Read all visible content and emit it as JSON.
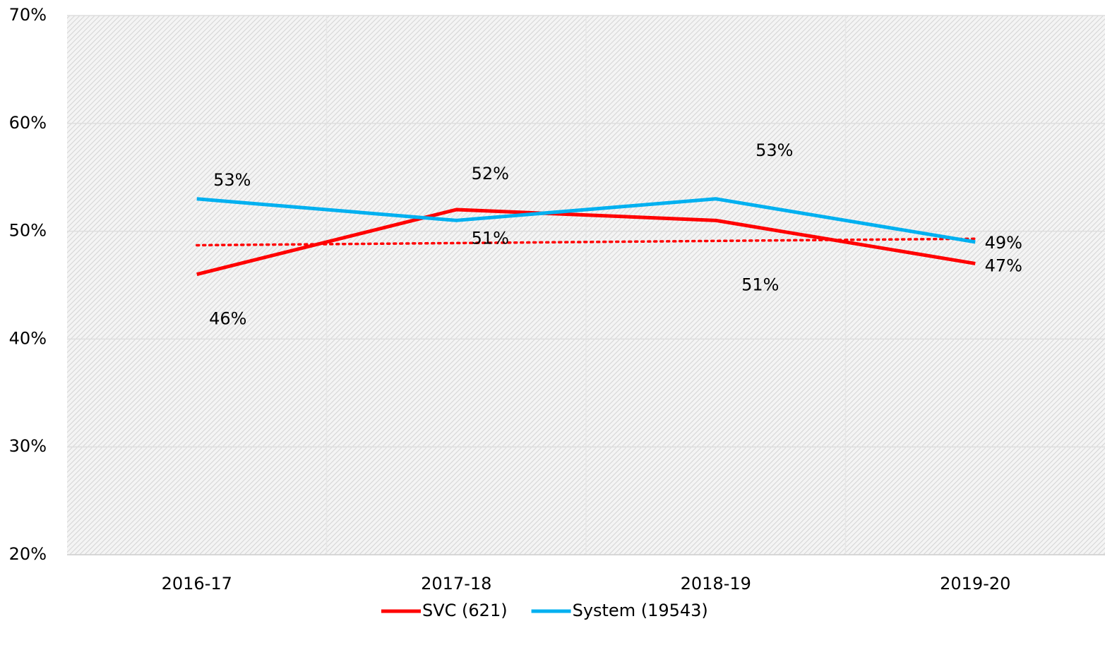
{
  "chart_data": {
    "type": "line",
    "categories": [
      "2016-17",
      "2017-18",
      "2018-19",
      "2019-20"
    ],
    "series": [
      {
        "name": "SVC (621)",
        "color": "#ff0000",
        "values": [
          46,
          52,
          51,
          47
        ],
        "value_labels": [
          "46%",
          "52%",
          "51%",
          "47%"
        ],
        "trendline": "linear"
      },
      {
        "name": "System (19543)",
        "color": "#00b0f0",
        "values": [
          53,
          51,
          53,
          49
        ],
        "value_labels": [
          "53%",
          "51%",
          "53%",
          "49%"
        ]
      }
    ],
    "ylim": [
      20,
      70
    ],
    "yticks": [
      {
        "value": 20,
        "label": "20%"
      },
      {
        "value": 30,
        "label": "30%"
      },
      {
        "value": 40,
        "label": "40%"
      },
      {
        "value": 50,
        "label": "50%"
      },
      {
        "value": 60,
        "label": "60%"
      },
      {
        "value": 70,
        "label": "70%"
      }
    ],
    "grid": true,
    "legend": "bottom"
  }
}
